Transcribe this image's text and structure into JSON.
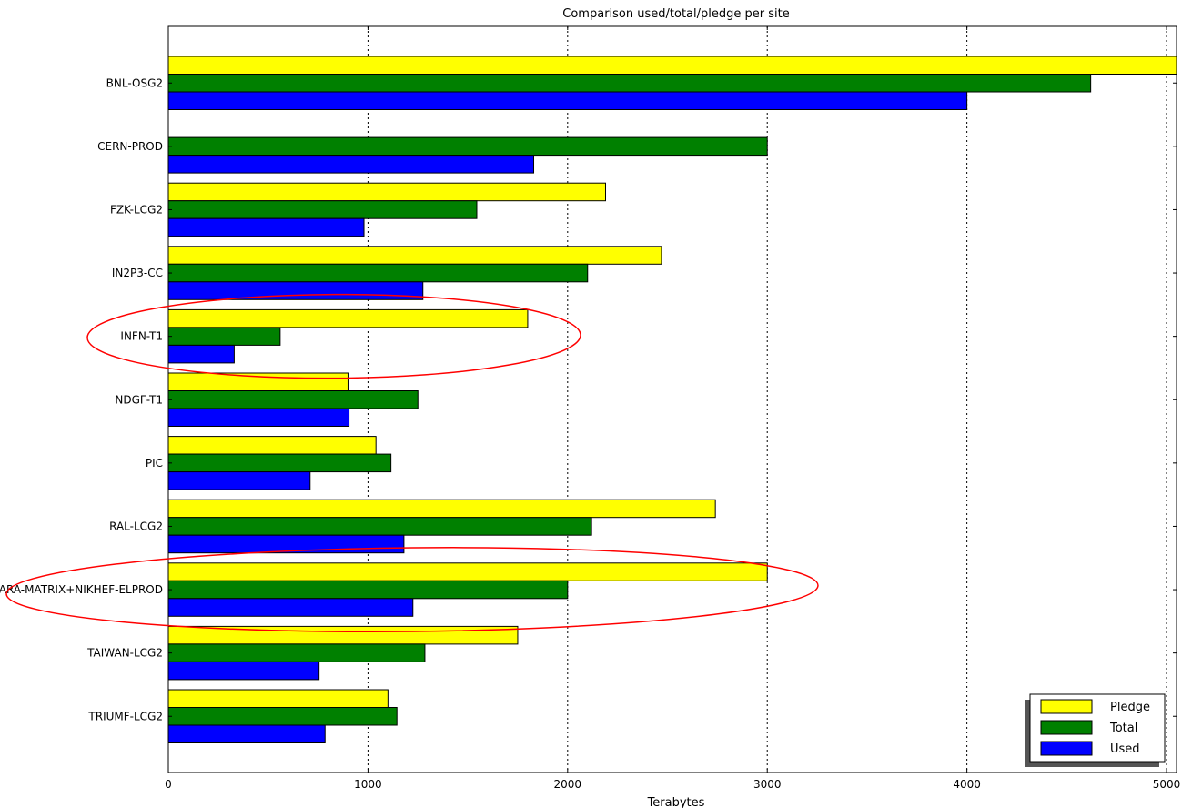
{
  "chart_data": {
    "type": "bar",
    "orientation": "horizontal",
    "title": "Comparison used/total/pledge per site",
    "xlabel": "Terabytes",
    "ylabel": "",
    "xlim": [
      0,
      5050
    ],
    "xticks": [
      0,
      1000,
      2000,
      3000,
      4000,
      5000
    ],
    "grid": "vertical dotted",
    "categories": [
      "BNL-OSG2",
      "CERN-PROD",
      "FZK-LCG2",
      "IN2P3-CC",
      "INFN-T1",
      "NDGF-T1",
      "PIC",
      "RAL-LCG2",
      "SARA-MATRIX+NIKHEF-ELPROD",
      "TAIWAN-LCG2",
      "TRIUMF-LCG2"
    ],
    "series": [
      {
        "name": "Pledge",
        "color": "#ffff00",
        "values": [
          5050,
          null,
          2190,
          2470,
          1800,
          900,
          1040,
          2740,
          3000,
          1750,
          1100
        ]
      },
      {
        "name": "Total",
        "color": "#008000",
        "values": [
          4620,
          3000,
          1545,
          2100,
          560,
          1250,
          1115,
          2120,
          2000,
          1285,
          1145
        ]
      },
      {
        "name": "Used",
        "color": "#0000ff",
        "values": [
          4000,
          1830,
          980,
          1275,
          330,
          905,
          710,
          1180,
          1225,
          755,
          785
        ]
      }
    ],
    "legend": {
      "placement": "bottom-right"
    },
    "annotations": [
      {
        "type": "ellipse",
        "color": "#ff0000",
        "category": "INFN-T1"
      },
      {
        "type": "ellipse",
        "color": "#ff0000",
        "category": "SARA-MATRIX+NIKHEF-ELPROD"
      }
    ]
  }
}
